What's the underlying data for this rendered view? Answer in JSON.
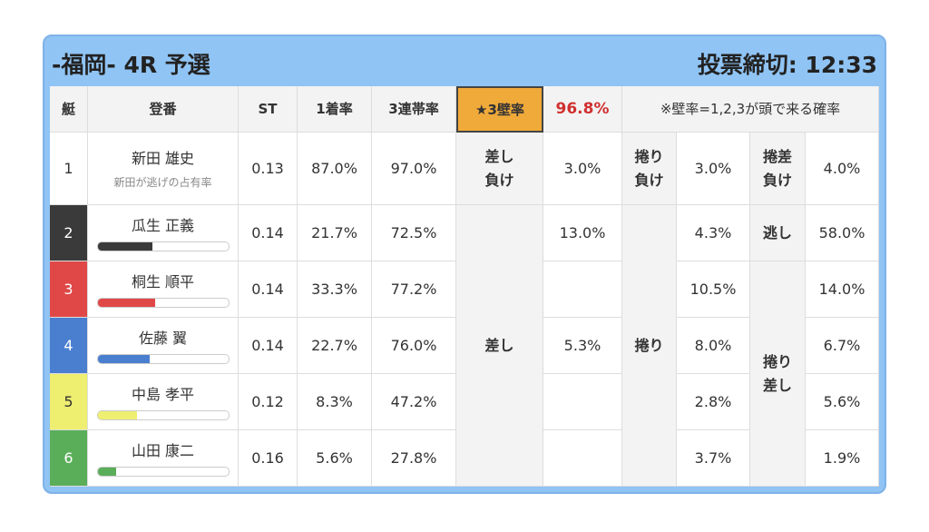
{
  "header": {
    "title": "-福岡- 4R 予選",
    "deadline": "投票締切: 12:33"
  },
  "table": {
    "columns": [
      "艇",
      "登番",
      "ST",
      "1着率",
      "3連帯率",
      "★3壁率",
      "96.8%",
      "※壁率=1,2,3が頭で来る確率"
    ],
    "first_row_labels": {
      "sashi": [
        "差し",
        "負け"
      ],
      "makuri": [
        "捲り",
        "負け"
      ],
      "makuzashi": [
        "捲差",
        "負け"
      ]
    },
    "group_labels": {
      "sashi": "差し",
      "makuri": "捲り",
      "nige": "逃し",
      "makuzashi": [
        "捲り",
        "差し"
      ]
    },
    "rows": [
      {
        "boat": "1",
        "name": "新田 雄史",
        "note": "新田が逃げの占有率",
        "st": "0.13",
        "win": "87.0%",
        "top3": "97.0%",
        "sashi": "3.0%",
        "makuri": "3.0%",
        "other": "4.0%",
        "color": "#ffffff"
      },
      {
        "boat": "2",
        "name": "瓜生 正義",
        "bar": 42,
        "st": "0.14",
        "win": "21.7%",
        "top3": "72.5%",
        "sashi": "13.0%",
        "makuri": "4.3%",
        "other": "58.0%",
        "color": "#3a3a3a"
      },
      {
        "boat": "3",
        "name": "桐生 順平",
        "bar": 44,
        "st": "0.14",
        "win": "33.3%",
        "top3": "77.2%",
        "sashi": null,
        "makuri": "10.5%",
        "other": "14.0%",
        "color": "#e04848"
      },
      {
        "boat": "4",
        "name": "佐藤 翼",
        "bar": 40,
        "st": "0.14",
        "win": "22.7%",
        "top3": "76.0%",
        "sashi": "5.3%",
        "makuri": "8.0%",
        "other": "6.7%",
        "color": "#4a7fd0"
      },
      {
        "boat": "5",
        "name": "中島 孝平",
        "bar": 30,
        "st": "0.12",
        "win": "8.3%",
        "top3": "47.2%",
        "sashi": null,
        "makuri": "2.8%",
        "other": "5.6%",
        "color": "#eeee70"
      },
      {
        "boat": "6",
        "name": "山田 康二",
        "bar": 14,
        "st": "0.16",
        "win": "5.6%",
        "top3": "27.8%",
        "sashi": null,
        "makuri": "3.7%",
        "other": "1.9%",
        "color": "#5aae5a"
      }
    ]
  }
}
